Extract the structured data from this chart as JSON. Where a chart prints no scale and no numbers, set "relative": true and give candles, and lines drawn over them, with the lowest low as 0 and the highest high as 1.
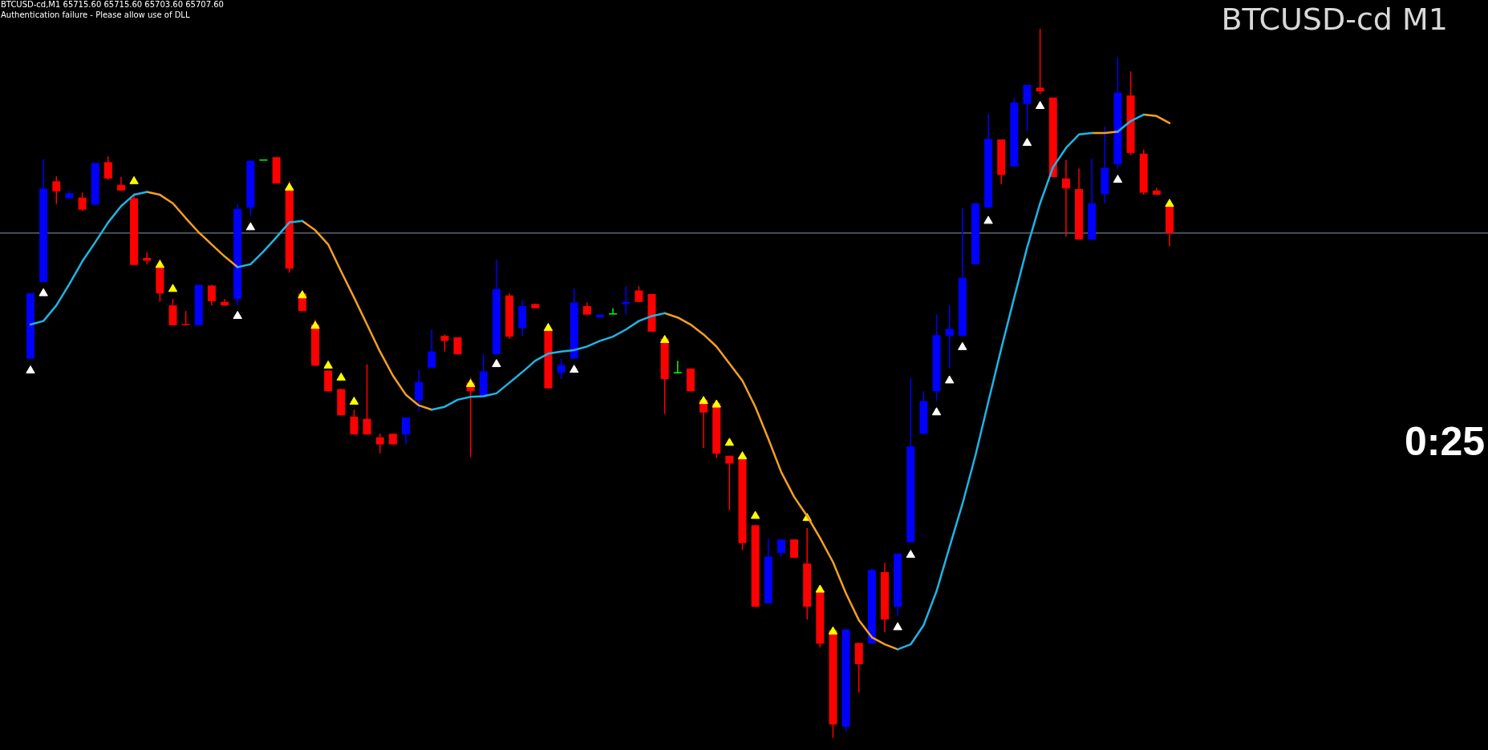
{
  "chart_data": {
    "type": "candlestick",
    "title": "BTCUSD-cd M1",
    "relative": true,
    "tick_labels": false,
    "categories": [
      null,
      null,
      null,
      null,
      null,
      null,
      null,
      null,
      null,
      null,
      null,
      null,
      null,
      null,
      null,
      null,
      null,
      null,
      null,
      null,
      null,
      null,
      null,
      null,
      null,
      null,
      null,
      null,
      null,
      null,
      null,
      null,
      null,
      null,
      null,
      null,
      null,
      null,
      null,
      null,
      null,
      null,
      null,
      null,
      null,
      null,
      null,
      null,
      null,
      null,
      null,
      null,
      null,
      null,
      null,
      null,
      null,
      null,
      null,
      null,
      null,
      null,
      null,
      null,
      null,
      null,
      null,
      null,
      null,
      null,
      null,
      null,
      null,
      null,
      null,
      null,
      null,
      null,
      null,
      null,
      null,
      null,
      null,
      null,
      null,
      null,
      null,
      null,
      null
    ],
    "ohlc": [
      [
        0.535,
        0.627,
        0.535,
        0.627
      ],
      [
        0.643,
        0.816,
        0.643,
        0.775
      ],
      [
        0.785,
        0.792,
        0.753,
        0.771
      ],
      [
        0.761,
        0.772,
        0.761,
        0.768
      ],
      [
        0.762,
        0.769,
        0.743,
        0.745
      ],
      [
        0.752,
        0.811,
        0.752,
        0.811
      ],
      [
        0.812,
        0.82,
        0.787,
        0.789
      ],
      [
        0.78,
        0.791,
        0.772,
        0.772
      ],
      [
        0.761,
        0.768,
        0.667,
        0.667
      ],
      [
        0.677,
        0.685,
        0.668,
        0.673
      ],
      [
        0.665,
        0.675,
        0.615,
        0.627
      ],
      [
        0.61,
        0.619,
        0.582,
        0.582
      ],
      [
        0.583,
        0.602,
        0.582,
        0.582
      ],
      [
        0.582,
        0.639,
        0.582,
        0.639
      ],
      [
        0.638,
        0.639,
        0.61,
        0.616
      ],
      [
        0.615,
        0.619,
        0.61,
        0.61
      ],
      [
        0.619,
        0.753,
        0.61,
        0.746
      ],
      [
        0.748,
        0.814,
        0.737,
        0.814
      ],
      [
        0.815,
        0.815,
        0.815,
        0.815
      ],
      [
        0.819,
        0.819,
        0.782,
        0.782
      ],
      [
        0.774,
        0.785,
        0.656,
        0.662
      ],
      [
        0.627,
        0.627,
        0.602,
        0.602
      ],
      [
        0.583,
        0.59,
        0.525,
        0.525
      ],
      [
        0.518,
        0.518,
        0.489,
        0.489
      ],
      [
        0.492,
        0.492,
        0.455,
        0.455
      ],
      [
        0.453,
        0.463,
        0.428,
        0.428
      ],
      [
        0.45,
        0.527,
        0.428,
        0.428
      ],
      [
        0.424,
        0.429,
        0.401,
        0.414
      ],
      [
        0.429,
        0.429,
        0.414,
        0.414
      ],
      [
        0.428,
        0.452,
        0.414,
        0.452
      ],
      [
        0.476,
        0.519,
        0.461,
        0.502
      ],
      [
        0.522,
        0.576,
        0.522,
        0.545
      ],
      [
        0.567,
        0.569,
        0.545,
        0.56
      ],
      [
        0.565,
        0.565,
        0.541,
        0.541
      ],
      [
        0.501,
        0.508,
        0.396,
        0.489
      ],
      [
        0.482,
        0.541,
        0.482,
        0.517
      ],
      [
        0.541,
        0.675,
        0.541,
        0.633
      ],
      [
        0.624,
        0.627,
        0.563,
        0.566
      ],
      [
        0.578,
        0.617,
        0.567,
        0.609
      ],
      [
        0.612,
        0.612,
        0.606,
        0.606
      ],
      [
        0.576,
        0.576,
        0.493,
        0.493
      ],
      [
        0.515,
        0.535,
        0.506,
        0.526
      ],
      [
        0.535,
        0.634,
        0.535,
        0.614
      ],
      [
        0.609,
        0.614,
        0.597,
        0.597
      ],
      [
        0.593,
        0.597,
        0.593,
        0.597
      ],
      [
        0.598,
        0.606,
        0.598,
        0.598
      ],
      [
        0.612,
        0.637,
        0.597,
        0.615
      ],
      [
        0.631,
        0.637,
        0.615,
        0.615
      ],
      [
        0.626,
        0.626,
        0.573,
        0.573
      ],
      [
        0.563,
        0.563,
        0.457,
        0.506
      ],
      [
        0.515,
        0.532,
        0.515,
        0.515
      ],
      [
        0.521,
        0.521,
        0.489,
        0.489
      ],
      [
        0.477,
        0.477,
        0.409,
        0.459
      ],
      [
        0.472,
        0.472,
        0.395,
        0.401
      ],
      [
        0.398,
        0.398,
        0.321,
        0.387
      ],
      [
        0.397,
        0.397,
        0.265,
        0.275
      ],
      [
        0.3,
        0.3,
        0.185,
        0.185
      ],
      [
        0.19,
        0.281,
        0.19,
        0.256
      ],
      [
        0.261,
        0.28,
        0.256,
        0.28
      ],
      [
        0.28,
        0.28,
        0.254,
        0.254
      ],
      [
        0.246,
        0.296,
        0.167,
        0.185
      ],
      [
        0.208,
        0.208,
        0.128,
        0.133
      ],
      [
        0.152,
        0.152,
        0,
        0.019
      ],
      [
        0.016,
        0.153,
        0.009,
        0.153
      ],
      [
        0.134,
        0.134,
        0.064,
        0.104
      ],
      [
        0.133,
        0.239,
        0.133,
        0.237
      ],
      [
        0.234,
        0.247,
        0.149,
        0.167
      ],
      [
        0.185,
        0.26,
        0.172,
        0.26
      ],
      [
        0.276,
        0.508,
        0.276,
        0.411
      ],
      [
        0.429,
        0.489,
        0.429,
        0.475
      ],
      [
        0.489,
        0.597,
        0.475,
        0.568
      ],
      [
        0.567,
        0.61,
        0.522,
        0.577
      ],
      [
        0.567,
        0.747,
        0.567,
        0.649
      ],
      [
        0.668,
        0.754,
        0.668,
        0.754
      ],
      [
        0.748,
        0.88,
        0.747,
        0.845
      ],
      [
        0.844,
        0.844,
        0.781,
        0.794
      ],
      [
        0.806,
        0.903,
        0.806,
        0.896
      ],
      [
        0.894,
        0.921,
        0.856,
        0.921
      ],
      [
        0.917,
        1,
        0.908,
        0.912
      ],
      [
        0.903,
        0.903,
        0.791,
        0.791
      ],
      [
        0.789,
        0.815,
        0.707,
        0.775
      ],
      [
        0.774,
        0.803,
        0.703,
        0.703
      ],
      [
        0.703,
        0.817,
        0.703,
        0.754
      ],
      [
        0.767,
        0.862,
        0.754,
        0.804
      ],
      [
        0.809,
        0.96,
        0.803,
        0.91
      ],
      [
        0.906,
        0.94,
        0.822,
        0.825
      ],
      [
        0.824,
        0.83,
        0.766,
        0.769
      ],
      [
        0.772,
        0.776,
        0.766,
        0.766
      ],
      [
        0.749,
        0.749,
        0.693,
        0.712
      ]
    ],
    "colors": [
      "#0000ff",
      "#0000ff",
      "#ff0000",
      "#0000ff",
      "#ff0000",
      "#0000ff",
      "#ff0000",
      "#ff0000",
      "#ff0000",
      "#ff0000",
      "#ff0000",
      "#ff0000",
      "#ff0000",
      "#0000ff",
      "#ff0000",
      "#ff0000",
      "#0000ff",
      "#0000ff",
      "#00ff00",
      "#ff0000",
      "#ff0000",
      "#ff0000",
      "#ff0000",
      "#ff0000",
      "#ff0000",
      "#ff0000",
      "#ff0000",
      "#ff0000",
      "#ff0000",
      "#0000ff",
      "#0000ff",
      "#0000ff",
      "#ff0000",
      "#ff0000",
      "#ff0000",
      "#0000ff",
      "#0000ff",
      "#ff0000",
      "#0000ff",
      "#ff0000",
      "#ff0000",
      "#0000ff",
      "#0000ff",
      "#ff0000",
      "#0000ff",
      "#00ff00",
      "#0000ff",
      "#ff0000",
      "#ff0000",
      "#ff0000",
      "#00ff00",
      "#ff0000",
      "#ff0000",
      "#ff0000",
      "#ff0000",
      "#ff0000",
      "#ff0000",
      "#0000ff",
      "#0000ff",
      "#ff0000",
      "#ff0000",
      "#ff0000",
      "#ff0000",
      "#0000ff",
      "#ff0000",
      "#0000ff",
      "#ff0000",
      "#0000ff",
      "#0000ff",
      "#0000ff",
      "#0000ff",
      "#0000ff",
      "#0000ff",
      "#0000ff",
      "#0000ff",
      "#ff0000",
      "#0000ff",
      "#0000ff",
      "#ff0000",
      "#ff0000",
      "#ff0000",
      "#ff0000",
      "#0000ff",
      "#0000ff",
      "#0000ff",
      "#ff0000",
      "#ff0000",
      "#ff0000",
      "#ff0000"
    ],
    "series": [
      {
        "type": "line",
        "color": "#1fb4e6",
        "values": [
          0.583,
          0.588,
          0.61,
          0.64,
          0.672,
          0.699,
          0.727,
          0.75,
          0.766,
          0.77,
          null,
          null,
          null,
          null,
          null,
          null,
          0.664,
          0.668,
          0.686,
          0.706,
          0.727,
          0.729,
          null,
          null,
          null,
          null,
          null,
          null,
          null,
          null,
          null,
          0.463,
          0.467,
          0.477,
          0.481,
          0.482,
          0.486,
          0.501,
          0.516,
          0.532,
          0.542,
          0.545,
          0.547,
          0.552,
          0.56,
          0.566,
          0.576,
          0.588,
          0.595,
          0.599,
          null,
          null,
          null,
          null,
          null,
          null,
          null,
          null,
          null,
          null,
          null,
          null,
          null,
          null,
          null,
          null,
          null,
          0.125,
          0.132,
          0.159,
          0.207,
          0.269,
          0.33,
          0.398,
          0.474,
          0.549,
          0.621,
          0.692,
          0.754,
          0.805,
          0.832,
          0.851,
          0.853,
          null,
          0.855,
          0.87,
          0.879,
          null,
          null
        ]
      },
      {
        "type": "line",
        "color": "#f5a020",
        "values": [
          null,
          null,
          null,
          null,
          null,
          null,
          null,
          null,
          null,
          0.77,
          0.766,
          0.754,
          0.733,
          0.713,
          0.696,
          0.679,
          0.664,
          null,
          null,
          null,
          null,
          0.729,
          0.716,
          0.696,
          0.658,
          0.621,
          0.583,
          0.545,
          0.511,
          0.484,
          0.469,
          0.463,
          null,
          null,
          null,
          null,
          null,
          null,
          null,
          null,
          null,
          null,
          null,
          null,
          null,
          null,
          null,
          null,
          null,
          0.599,
          0.593,
          0.583,
          0.569,
          0.552,
          0.528,
          0.504,
          0.467,
          0.422,
          0.375,
          0.34,
          0.313,
          0.282,
          0.248,
          0.204,
          0.166,
          0.142,
          0.132,
          0.125,
          null,
          null,
          null,
          null,
          null,
          null,
          null,
          null,
          null,
          null,
          null,
          null,
          null,
          null,
          0.853,
          0.853,
          0.855,
          null,
          0.879,
          0.877,
          0.867
        ]
      },
      {
        "type": "scatter",
        "color": "#ffffff",
        "marker": "triangle",
        "values": [
          0.518,
          0.627,
          null,
          null,
          null,
          null,
          null,
          null,
          null,
          null,
          null,
          null,
          null,
          null,
          null,
          null,
          0.595,
          0.72,
          null,
          null,
          null,
          null,
          null,
          null,
          null,
          null,
          null,
          null,
          null,
          null,
          null,
          null,
          null,
          null,
          null,
          null,
          0.527,
          null,
          null,
          null,
          null,
          null,
          0.519,
          null,
          null,
          null,
          null,
          null,
          null,
          null,
          null,
          null,
          null,
          null,
          null,
          null,
          null,
          null,
          null,
          null,
          null,
          null,
          null,
          null,
          null,
          null,
          null,
          0.156,
          0.258,
          null,
          0.459,
          0.504,
          0.551,
          null,
          0.729,
          null,
          null,
          0.839,
          0.891,
          null,
          null,
          null,
          null,
          null,
          0.787,
          null,
          null,
          null,
          null
        ]
      },
      {
        "type": "scatter",
        "color": "#ffff00",
        "marker": "triangle",
        "values": [
          null,
          null,
          null,
          null,
          null,
          null,
          null,
          null,
          0.785,
          null,
          0.667,
          0.633,
          null,
          null,
          null,
          null,
          null,
          null,
          null,
          null,
          0.776,
          0.624,
          0.581,
          0.525,
          0.508,
          0.474,
          null,
          null,
          null,
          null,
          null,
          null,
          null,
          null,
          0.499,
          null,
          null,
          null,
          null,
          null,
          0.578,
          null,
          null,
          null,
          null,
          null,
          null,
          null,
          null,
          0.561,
          null,
          null,
          0.475,
          0.47,
          0.416,
          0.397,
          0.313,
          null,
          null,
          null,
          0.31,
          0.209,
          0.15,
          null,
          null,
          null,
          null,
          null,
          null,
          null,
          null,
          null,
          null,
          null,
          null,
          null,
          null,
          null,
          null,
          null,
          null,
          null,
          null,
          null,
          null,
          null,
          null,
          null,
          0.753
        ]
      }
    ],
    "ref_lines": [
      {
        "axis": "y",
        "value": 0.712,
        "color": "#8a9aa8"
      }
    ],
    "annotations": [
      "BTCUSD-cd,M1  65715.60 65715.60 65703.60 65707.60",
      "Authentication failure - Please allow use of DLL",
      "0:25"
    ]
  }
}
